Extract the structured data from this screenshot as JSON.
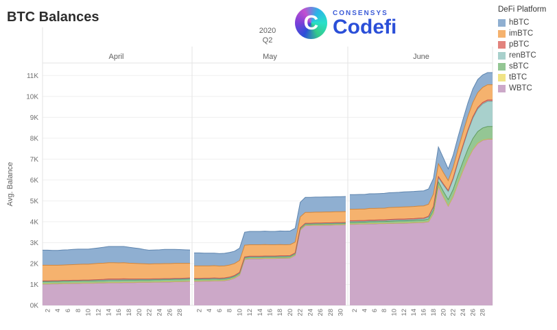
{
  "title": "BTC Balances",
  "logo": {
    "brand": "CONSENSYS",
    "product": "Codefi",
    "mark_letter": "C"
  },
  "chart_data": {
    "type": "area",
    "stacked": true,
    "title": "BTC Balances",
    "ylabel": "Avg. Balance",
    "ylim": [
      0,
      11.6
    ],
    "y_unit": "K",
    "yticks": [
      "0K",
      "1K",
      "2K",
      "3K",
      "4K",
      "5K",
      "6K",
      "7K",
      "8K",
      "9K",
      "10K",
      "11K"
    ],
    "grid": true,
    "period": {
      "year": "2020",
      "quarter": "Q2"
    },
    "legend": {
      "title": "DeFi Platform",
      "position": "top-right",
      "order": [
        "hBTC",
        "imBTC",
        "pBTC",
        "renBTC",
        "sBTC",
        "tBTC",
        "WBTC"
      ]
    },
    "months": [
      {
        "label": "April",
        "days": 30,
        "tick_days": [
          2,
          4,
          6,
          8,
          10,
          12,
          14,
          16,
          18,
          20,
          22,
          24,
          26,
          28
        ]
      },
      {
        "label": "May",
        "days": 31,
        "tick_days": [
          2,
          4,
          6,
          8,
          10,
          12,
          14,
          16,
          18,
          20,
          22,
          24,
          26,
          28,
          30
        ]
      },
      {
        "label": "June",
        "days": 30,
        "tick_days": [
          2,
          4,
          6,
          8,
          10,
          12,
          14,
          16,
          18,
          20,
          22,
          24,
          26,
          28
        ]
      }
    ],
    "stack_order_bottom_to_top": [
      "WBTC",
      "tBTC",
      "sBTC",
      "renBTC",
      "pBTC",
      "imBTC",
      "hBTC"
    ],
    "series": [
      {
        "name": "WBTC",
        "color": "#cca8c8",
        "stroke": "#9f77a0",
        "values": [
          1.02,
          1.02,
          1.03,
          1.03,
          1.04,
          1.04,
          1.05,
          1.05,
          1.06,
          1.06,
          1.06,
          1.07,
          1.07,
          1.08,
          1.08,
          1.08,
          1.09,
          1.09,
          1.09,
          1.1,
          1.1,
          1.1,
          1.11,
          1.11,
          1.12,
          1.12,
          1.13,
          1.13,
          1.14,
          1.15,
          1.15,
          1.15,
          1.16,
          1.16,
          1.17,
          1.17,
          1.18,
          1.22,
          1.3,
          1.45,
          2.2,
          2.23,
          2.23,
          2.23,
          2.24,
          2.24,
          2.24,
          2.25,
          2.25,
          2.26,
          2.4,
          3.6,
          3.82,
          3.82,
          3.83,
          3.83,
          3.84,
          3.84,
          3.85,
          3.85,
          3.86,
          3.88,
          3.88,
          3.89,
          3.89,
          3.9,
          3.9,
          3.91,
          3.91,
          3.92,
          3.92,
          3.93,
          3.93,
          3.94,
          3.95,
          3.96,
          3.97,
          4.0,
          4.4,
          5.7,
          5.2,
          4.75,
          5.2,
          5.85,
          6.45,
          7.0,
          7.45,
          7.75,
          7.9,
          7.95,
          7.95
        ]
      },
      {
        "name": "tBTC",
        "color": "#f0e385",
        "stroke": "#cdbf55",
        "values": [
          0.01,
          0.01,
          0.01,
          0.01,
          0.01,
          0.01,
          0.01,
          0.01,
          0.01,
          0.01,
          0.01,
          0.01,
          0.01,
          0.01,
          0.01,
          0.01,
          0.01,
          0.01,
          0.01,
          0.01,
          0.01,
          0.01,
          0.01,
          0.01,
          0.01,
          0.01,
          0.01,
          0.01,
          0.01,
          0.01,
          0.01,
          0.01,
          0.01,
          0.01,
          0.01,
          0.01,
          0.01,
          0.01,
          0.01,
          0.01,
          0.01,
          0.01,
          0.01,
          0.01,
          0.01,
          0.01,
          0.01,
          0.01,
          0.01,
          0.01,
          0.01,
          0.01,
          0.01,
          0.01,
          0.01,
          0.01,
          0.01,
          0.01,
          0.01,
          0.01,
          0.01,
          0.01,
          0.01,
          0.01,
          0.01,
          0.01,
          0.01,
          0.01,
          0.01,
          0.01,
          0.01,
          0.01,
          0.01,
          0.01,
          0.01,
          0.01,
          0.01,
          0.01,
          0.01,
          0.01,
          0.01,
          0.01,
          0.01,
          0.01,
          0.01,
          0.01,
          0.01,
          0.01,
          0.01,
          0.01,
          0.01
        ]
      },
      {
        "name": "sBTC",
        "color": "#94c694",
        "stroke": "#5f9c5f",
        "values": [
          0.1,
          0.1,
          0.1,
          0.1,
          0.1,
          0.1,
          0.1,
          0.1,
          0.1,
          0.1,
          0.1,
          0.1,
          0.1,
          0.1,
          0.1,
          0.1,
          0.1,
          0.1,
          0.1,
          0.1,
          0.1,
          0.1,
          0.1,
          0.1,
          0.1,
          0.1,
          0.1,
          0.1,
          0.1,
          0.1,
          0.08,
          0.08,
          0.08,
          0.08,
          0.08,
          0.07,
          0.07,
          0.07,
          0.07,
          0.07,
          0.06,
          0.06,
          0.06,
          0.06,
          0.06,
          0.06,
          0.06,
          0.06,
          0.06,
          0.06,
          0.05,
          0.05,
          0.05,
          0.05,
          0.05,
          0.05,
          0.05,
          0.05,
          0.05,
          0.05,
          0.05,
          0.08,
          0.08,
          0.08,
          0.08,
          0.09,
          0.09,
          0.09,
          0.09,
          0.09,
          0.1,
          0.1,
          0.1,
          0.1,
          0.1,
          0.1,
          0.1,
          0.12,
          0.15,
          0.2,
          0.25,
          0.3,
          0.34,
          0.38,
          0.42,
          0.47,
          0.52,
          0.56,
          0.58,
          0.6,
          0.6
        ]
      },
      {
        "name": "renBTC",
        "color": "#a8d0cc",
        "stroke": "#72ada7",
        "values": [
          0.02,
          0.02,
          0.02,
          0.02,
          0.02,
          0.02,
          0.02,
          0.02,
          0.02,
          0.02,
          0.02,
          0.02,
          0.02,
          0.02,
          0.02,
          0.02,
          0.02,
          0.02,
          0.02,
          0.02,
          0.02,
          0.02,
          0.02,
          0.02,
          0.02,
          0.02,
          0.02,
          0.02,
          0.02,
          0.02,
          0.02,
          0.02,
          0.02,
          0.02,
          0.02,
          0.02,
          0.02,
          0.02,
          0.02,
          0.02,
          0.02,
          0.02,
          0.02,
          0.02,
          0.02,
          0.02,
          0.02,
          0.02,
          0.02,
          0.02,
          0.02,
          0.02,
          0.02,
          0.02,
          0.02,
          0.02,
          0.02,
          0.02,
          0.02,
          0.02,
          0.02,
          0.03,
          0.03,
          0.03,
          0.03,
          0.03,
          0.03,
          0.03,
          0.03,
          0.04,
          0.04,
          0.04,
          0.04,
          0.04,
          0.04,
          0.05,
          0.05,
          0.08,
          0.12,
          0.2,
          0.3,
          0.38,
          0.48,
          0.6,
          0.72,
          0.85,
          0.97,
          1.08,
          1.15,
          1.2,
          1.2
        ]
      },
      {
        "name": "pBTC",
        "color": "#e2837d",
        "stroke": "#c2524c",
        "values": [
          0.02,
          0.02,
          0.02,
          0.02,
          0.02,
          0.02,
          0.02,
          0.02,
          0.02,
          0.02,
          0.03,
          0.03,
          0.04,
          0.05,
          0.05,
          0.05,
          0.05,
          0.04,
          0.04,
          0.03,
          0.03,
          0.03,
          0.03,
          0.03,
          0.03,
          0.03,
          0.03,
          0.03,
          0.03,
          0.03,
          0.03,
          0.03,
          0.03,
          0.03,
          0.03,
          0.03,
          0.03,
          0.03,
          0.03,
          0.03,
          0.03,
          0.03,
          0.03,
          0.03,
          0.03,
          0.03,
          0.03,
          0.03,
          0.03,
          0.03,
          0.03,
          0.03,
          0.03,
          0.03,
          0.03,
          0.03,
          0.03,
          0.03,
          0.03,
          0.03,
          0.03,
          0.05,
          0.05,
          0.05,
          0.05,
          0.05,
          0.05,
          0.05,
          0.05,
          0.05,
          0.05,
          0.05,
          0.05,
          0.05,
          0.05,
          0.05,
          0.05,
          0.05,
          0.05,
          0.05,
          0.05,
          0.05,
          0.06,
          0.06,
          0.06,
          0.06,
          0.07,
          0.07,
          0.07,
          0.07,
          0.07
        ]
      },
      {
        "name": "imBTC",
        "color": "#f5b26e",
        "stroke": "#d1853a",
        "values": [
          0.75,
          0.75,
          0.74,
          0.74,
          0.74,
          0.75,
          0.75,
          0.76,
          0.76,
          0.76,
          0.77,
          0.78,
          0.78,
          0.78,
          0.78,
          0.77,
          0.77,
          0.76,
          0.75,
          0.74,
          0.73,
          0.72,
          0.72,
          0.72,
          0.72,
          0.72,
          0.72,
          0.72,
          0.71,
          0.7,
          0.6,
          0.6,
          0.59,
          0.59,
          0.59,
          0.58,
          0.58,
          0.58,
          0.57,
          0.57,
          0.56,
          0.55,
          0.55,
          0.55,
          0.55,
          0.54,
          0.54,
          0.54,
          0.53,
          0.53,
          0.52,
          0.52,
          0.52,
          0.52,
          0.52,
          0.52,
          0.52,
          0.52,
          0.52,
          0.52,
          0.52,
          0.55,
          0.55,
          0.55,
          0.55,
          0.56,
          0.56,
          0.56,
          0.56,
          0.57,
          0.57,
          0.57,
          0.58,
          0.58,
          0.58,
          0.58,
          0.58,
          0.58,
          0.6,
          0.62,
          0.55,
          0.48,
          0.52,
          0.57,
          0.62,
          0.66,
          0.69,
          0.71,
          0.72,
          0.73,
          0.73
        ]
      },
      {
        "name": "hBTC",
        "color": "#8fafd1",
        "stroke": "#5d84ae",
        "values": [
          0.72,
          0.72,
          0.71,
          0.71,
          0.72,
          0.72,
          0.73,
          0.73,
          0.72,
          0.72,
          0.73,
          0.74,
          0.76,
          0.78,
          0.78,
          0.79,
          0.78,
          0.76,
          0.74,
          0.72,
          0.68,
          0.66,
          0.66,
          0.67,
          0.68,
          0.68,
          0.67,
          0.66,
          0.65,
          0.64,
          0.62,
          0.62,
          0.61,
          0.61,
          0.6,
          0.6,
          0.6,
          0.6,
          0.59,
          0.59,
          0.62,
          0.64,
          0.64,
          0.64,
          0.64,
          0.64,
          0.64,
          0.65,
          0.65,
          0.65,
          0.66,
          0.7,
          0.72,
          0.72,
          0.72,
          0.72,
          0.72,
          0.72,
          0.72,
          0.72,
          0.72,
          0.7,
          0.7,
          0.7,
          0.7,
          0.7,
          0.7,
          0.7,
          0.71,
          0.71,
          0.71,
          0.71,
          0.72,
          0.72,
          0.72,
          0.72,
          0.72,
          0.73,
          0.75,
          0.8,
          0.7,
          0.56,
          0.58,
          0.6,
          0.62,
          0.64,
          0.65,
          0.63,
          0.6,
          0.58,
          0.58
        ]
      }
    ]
  }
}
